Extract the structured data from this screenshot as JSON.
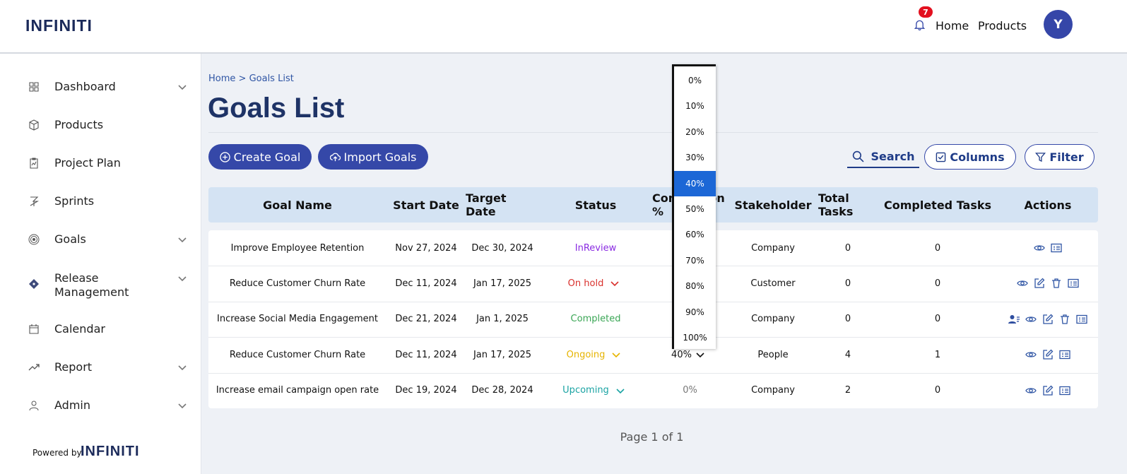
{
  "header": {
    "logo": "INFINITI",
    "notifications": "7",
    "nav": [
      "Home",
      "Products"
    ],
    "avatar": "Y"
  },
  "sidebar": {
    "items": [
      "Dashboard",
      "Products",
      "Project Plan",
      "Sprints",
      "Goals",
      "Release Management",
      "Calendar",
      "Report",
      "Admin"
    ],
    "powered_by": "Powered by",
    "logo": "INFINITI"
  },
  "breadcrumb": [
    "Home",
    ">",
    "Goals List"
  ],
  "title": "Goals List",
  "buttons": [
    "Create Goal",
    "Import Goals"
  ],
  "tools": [
    "Search",
    "Columns",
    "Filter"
  ],
  "table": {
    "columns": [
      "Goal Name",
      "Start Date",
      "Target Date",
      "Status",
      "Completion %",
      "Stakeholder",
      "Total Tasks",
      "Completed Tasks",
      "Actions"
    ],
    "rows": [
      [
        "Improve Employee Retention",
        "Nov 27, 2024",
        "Dec 30, 2024",
        "InReview",
        null,
        "Company",
        "0",
        "0"
      ],
      [
        "Reduce Customer Churn Rate",
        "Dec 11, 2024",
        "Jan 17, 2025",
        "On hold",
        null,
        "Customer",
        "0",
        "0"
      ],
      [
        "Increase Social Media Engagement",
        "Dec 21, 2024",
        "Jan 1, 2025",
        "Completed",
        null,
        "Company",
        "0",
        "0"
      ],
      [
        "Reduce Customer Churn Rate",
        "Dec 11, 2024",
        "Jan 17, 2025",
        "Ongoing",
        "40%",
        "People",
        "4",
        "1"
      ],
      [
        "Increase email campaign open rate",
        "Dec 19, 2024",
        "Dec 28, 2024",
        "Upcoming",
        "0%",
        "Company",
        "2",
        "0"
      ]
    ]
  },
  "completion_options": [
    "0%",
    "10%",
    "20%",
    "30%",
    "40%",
    "50%",
    "60%",
    "70%",
    "80%",
    "90%",
    "100%"
  ],
  "pagination": "Page 1 of 1"
}
